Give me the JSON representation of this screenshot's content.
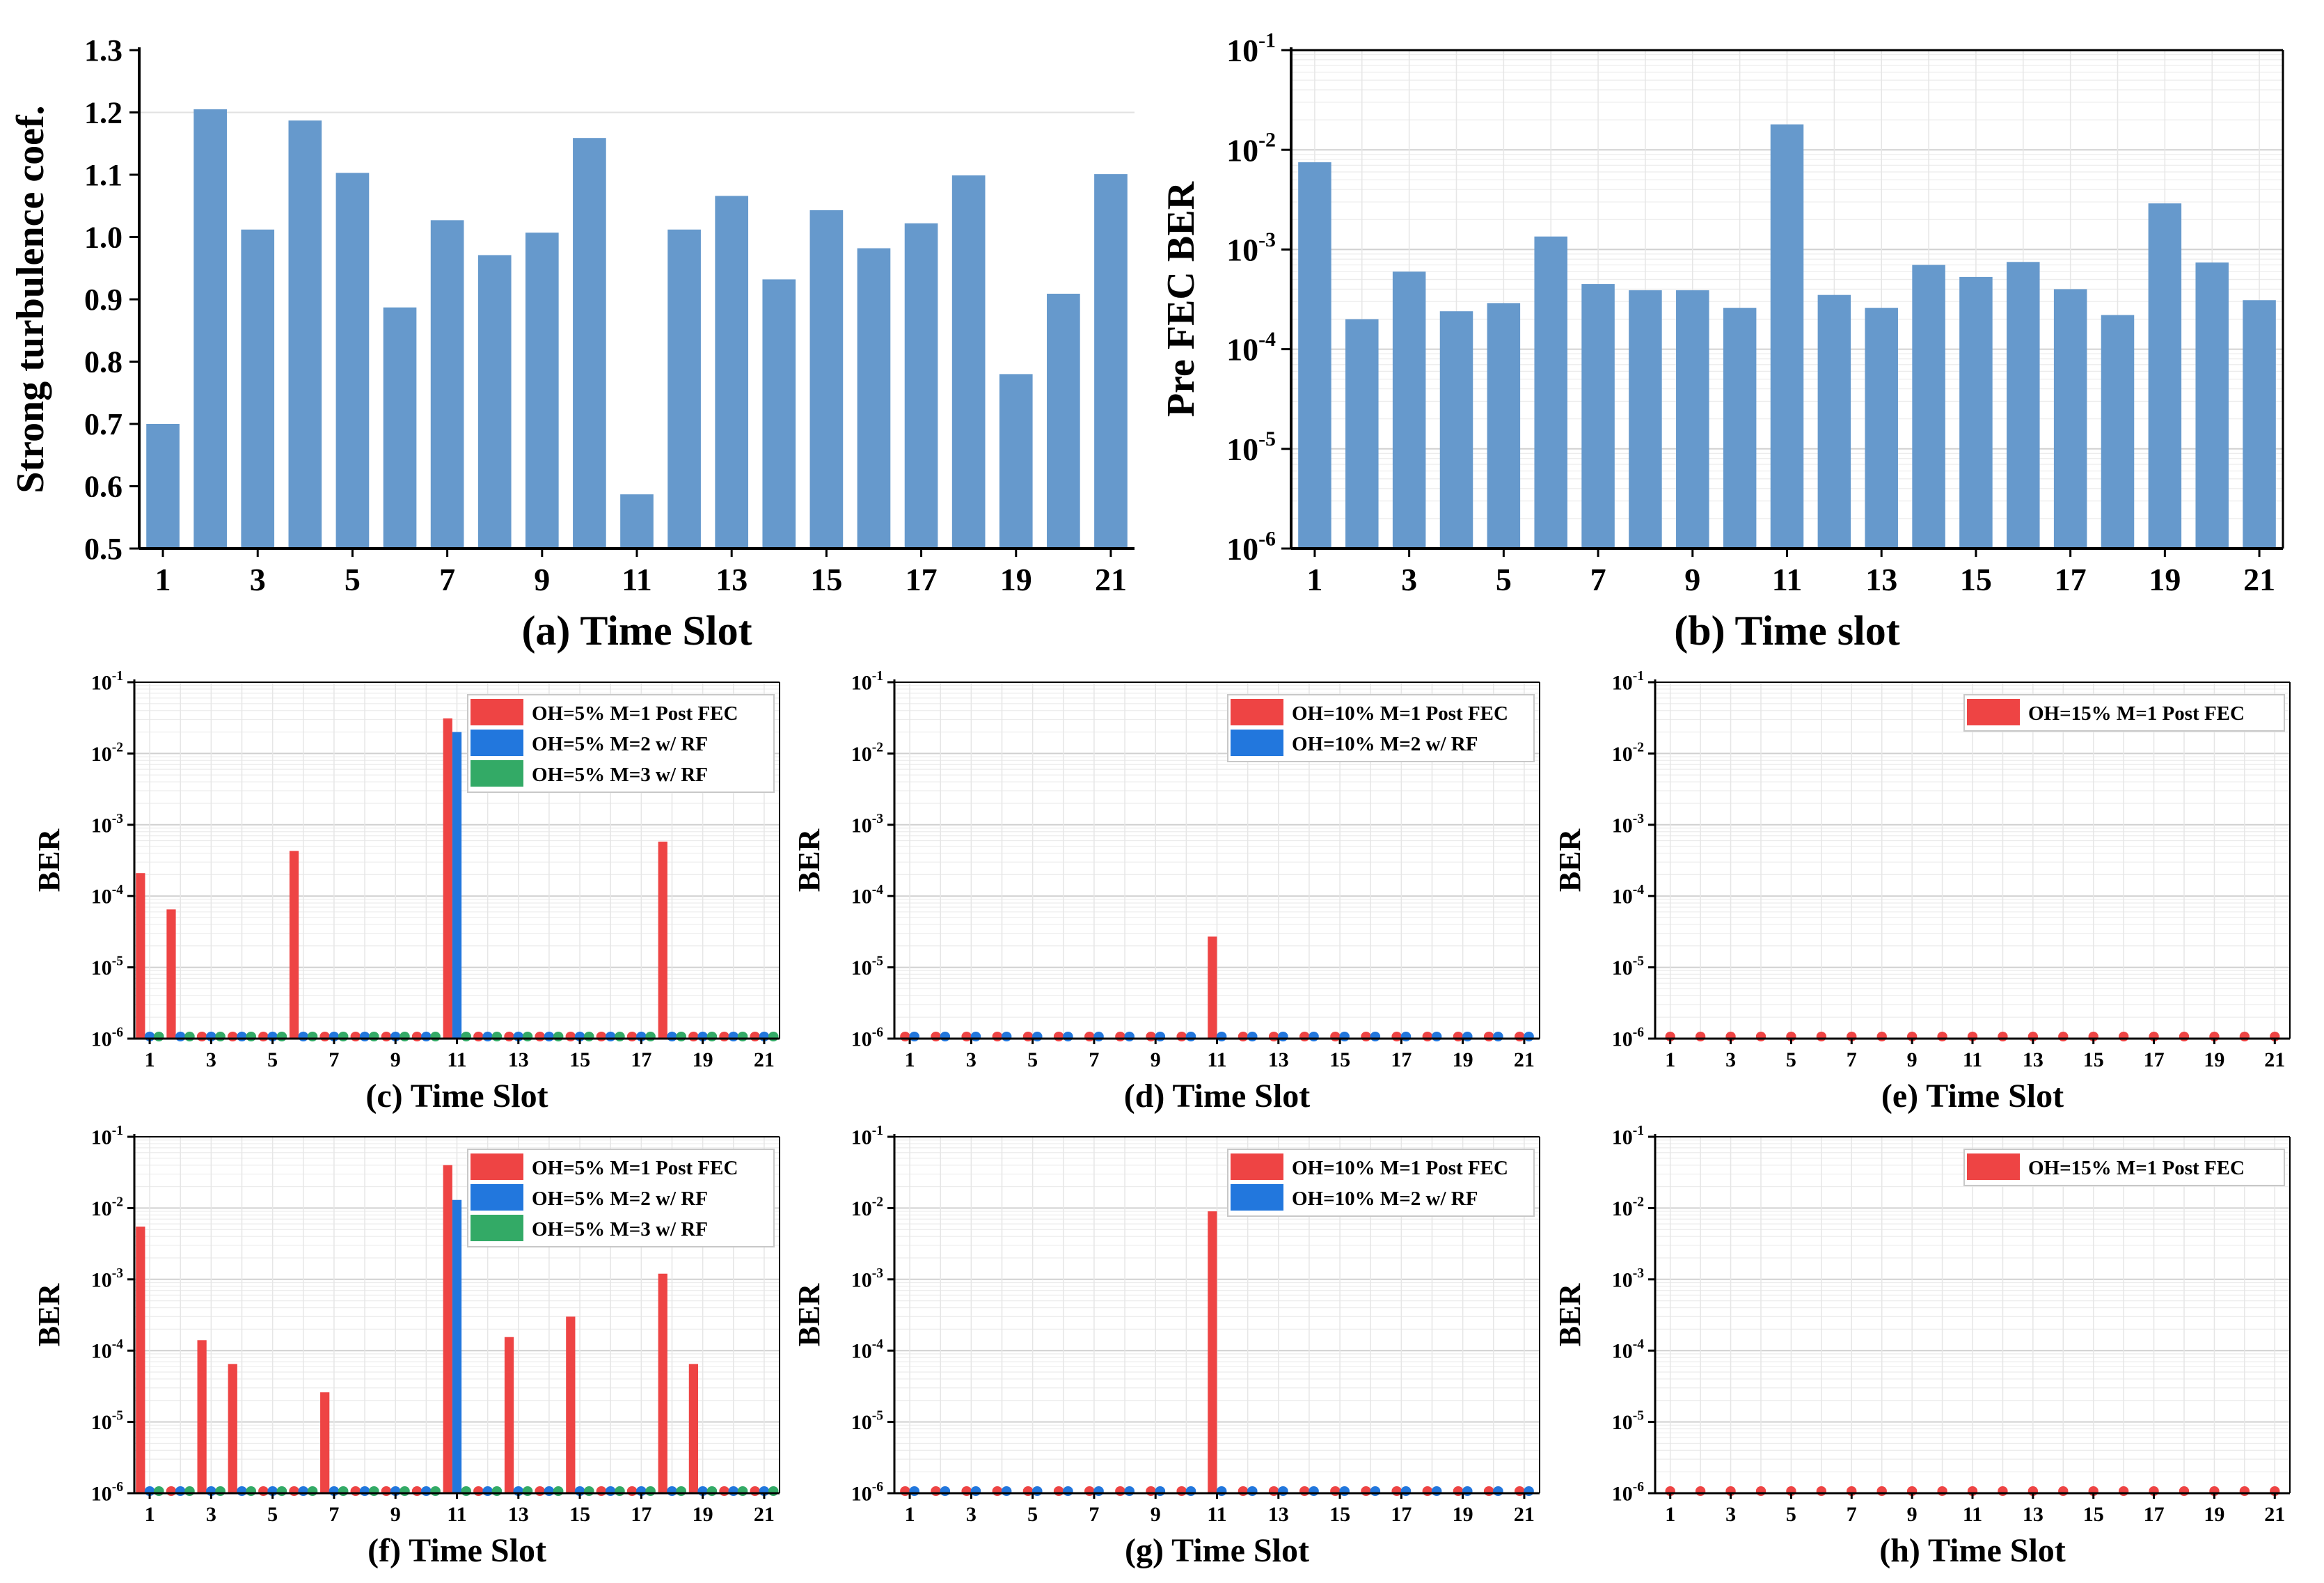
{
  "chart_data": [
    {
      "id": "a",
      "type": "bar",
      "scale": "linear",
      "title": "",
      "caption": "(a) Time Slot",
      "xlabel": "Time Slot",
      "ylabel": "Strong turbulence coef.",
      "ylim": [
        0.5,
        1.3
      ],
      "yticks": [
        "0.5",
        "0.6",
        "0.7",
        "0.8",
        "0.9",
        "1.0",
        "1.1",
        "1.2",
        "1.3"
      ],
      "xticks": [
        "1",
        "3",
        "5",
        "7",
        "9",
        "11",
        "13",
        "15",
        "17",
        "19",
        "21"
      ],
      "categories": [
        1,
        2,
        3,
        4,
        5,
        6,
        7,
        8,
        9,
        10,
        11,
        12,
        13,
        14,
        15,
        16,
        17,
        18,
        19,
        20,
        21
      ],
      "series": [
        {
          "name": "Strong turbulence coef.",
          "color": "#6699cc",
          "values": [
            0.7,
            1.205,
            1.012,
            1.187,
            1.103,
            0.887,
            1.027,
            0.971,
            1.007,
            1.159,
            0.587,
            1.012,
            1.066,
            0.932,
            1.043,
            0.982,
            1.022,
            1.099,
            0.78,
            0.909,
            1.101
          ]
        }
      ]
    },
    {
      "id": "b",
      "type": "bar",
      "scale": "log",
      "title": "",
      "caption": "(b) Time slot",
      "xlabel": "Time slot",
      "ylabel": "Pre FEC BER",
      "ylim": [
        1e-06,
        0.1
      ],
      "yticks_exp": [
        "-6",
        "-5",
        "-4",
        "-3",
        "-2",
        "-1"
      ],
      "xticks": [
        "1",
        "3",
        "5",
        "7",
        "9",
        "11",
        "13",
        "15",
        "17",
        "19",
        "21"
      ],
      "categories": [
        1,
        2,
        3,
        4,
        5,
        6,
        7,
        8,
        9,
        10,
        11,
        12,
        13,
        14,
        15,
        16,
        17,
        18,
        19,
        20,
        21
      ],
      "series": [
        {
          "name": "Pre FEC BER",
          "color": "#6699cc",
          "values": [
            0.0075,
            0.0002,
            0.0006,
            0.00024,
            0.00029,
            0.00135,
            0.00045,
            0.00039,
            0.00039,
            0.00026,
            0.018,
            0.00035,
            0.00026,
            0.0007,
            0.00053,
            0.00075,
            0.0004,
            0.00022,
            0.0029,
            0.00074,
            0.00031
          ]
        }
      ]
    },
    {
      "id": "c",
      "type": "bar",
      "scale": "log",
      "caption": "(c) Time Slot",
      "xlabel": "Time Slot",
      "ylabel": "BER",
      "ylim": [
        1e-06,
        0.1
      ],
      "yticks_exp": [
        "-6",
        "-5",
        "-4",
        "-3",
        "-2",
        "-1"
      ],
      "xticks": [
        "1",
        "3",
        "5",
        "7",
        "9",
        "11",
        "13",
        "15",
        "17",
        "19",
        "21"
      ],
      "categories": [
        1,
        2,
        3,
        4,
        5,
        6,
        7,
        8,
        9,
        10,
        11,
        12,
        13,
        14,
        15,
        16,
        17,
        18,
        19,
        20,
        21
      ],
      "legend_position": "top-right",
      "series": [
        {
          "name": "OH=5% M=1 Post FEC",
          "color": "#ee4444",
          "values": [
            0.00021,
            6.5e-05,
            0,
            0,
            0,
            0.00043,
            0,
            0,
            0,
            0,
            0.031,
            0,
            0,
            0,
            0,
            0,
            0,
            0.00058,
            0,
            0,
            0
          ]
        },
        {
          "name": "OH=5% M=2 w/ RF",
          "color": "#2277dd",
          "values": [
            0,
            0,
            0,
            0,
            0,
            0,
            0,
            0,
            0,
            0,
            0.02,
            0,
            0,
            0,
            0,
            0,
            0,
            0,
            0,
            0,
            0
          ]
        },
        {
          "name": "OH=5% M=3 w/ RF",
          "color": "#33aa66",
          "values": [
            0,
            0,
            0,
            0,
            0,
            0,
            0,
            0,
            0,
            0,
            0,
            0,
            0,
            0,
            0,
            0,
            0,
            0,
            0,
            0,
            0
          ]
        }
      ]
    },
    {
      "id": "d",
      "type": "bar",
      "scale": "log",
      "caption": "(d) Time Slot",
      "xlabel": "Time Slot",
      "ylabel": "BER",
      "ylim": [
        1e-06,
        0.1
      ],
      "yticks_exp": [
        "-6",
        "-5",
        "-4",
        "-3",
        "-2",
        "-1"
      ],
      "xticks": [
        "1",
        "3",
        "5",
        "7",
        "9",
        "11",
        "13",
        "15",
        "17",
        "19",
        "21"
      ],
      "categories": [
        1,
        2,
        3,
        4,
        5,
        6,
        7,
        8,
        9,
        10,
        11,
        12,
        13,
        14,
        15,
        16,
        17,
        18,
        19,
        20,
        21
      ],
      "legend_position": "top-right",
      "series": [
        {
          "name": "OH=10% M=1 Post FEC",
          "color": "#ee4444",
          "values": [
            0,
            0,
            0,
            0,
            0,
            0,
            0,
            0,
            0,
            0,
            2.7e-05,
            0,
            0,
            0,
            0,
            0,
            0,
            0,
            0,
            0,
            0
          ]
        },
        {
          "name": "OH=10% M=2 w/ RF",
          "color": "#2277dd",
          "values": [
            0,
            0,
            0,
            0,
            0,
            0,
            0,
            0,
            0,
            0,
            0,
            0,
            0,
            0,
            0,
            0,
            0,
            0,
            0,
            0,
            0
          ]
        }
      ]
    },
    {
      "id": "e",
      "type": "bar",
      "scale": "log",
      "caption": "(e) Time Slot",
      "xlabel": "Time Slot",
      "ylabel": "BER",
      "ylim": [
        1e-06,
        0.1
      ],
      "yticks_exp": [
        "-6",
        "-5",
        "-4",
        "-3",
        "-2",
        "-1"
      ],
      "xticks": [
        "1",
        "3",
        "5",
        "7",
        "9",
        "11",
        "13",
        "15",
        "17",
        "19",
        "21"
      ],
      "categories": [
        1,
        2,
        3,
        4,
        5,
        6,
        7,
        8,
        9,
        10,
        11,
        12,
        13,
        14,
        15,
        16,
        17,
        18,
        19,
        20,
        21
      ],
      "legend_position": "top-right",
      "series": [
        {
          "name": "OH=15% M=1 Post FEC",
          "color": "#ee4444",
          "values": [
            0,
            0,
            0,
            0,
            0,
            0,
            0,
            0,
            0,
            0,
            0,
            0,
            0,
            0,
            0,
            0,
            0,
            0,
            0,
            0,
            0
          ]
        }
      ]
    },
    {
      "id": "f",
      "type": "bar",
      "scale": "log",
      "caption": "(f) Time Slot",
      "xlabel": "Time Slot",
      "ylabel": "BER",
      "ylim": [
        1e-06,
        0.1
      ],
      "yticks_exp": [
        "-6",
        "-5",
        "-4",
        "-3",
        "-2",
        "-1"
      ],
      "xticks": [
        "1",
        "3",
        "5",
        "7",
        "9",
        "11",
        "13",
        "15",
        "17",
        "19",
        "21"
      ],
      "categories": [
        1,
        2,
        3,
        4,
        5,
        6,
        7,
        8,
        9,
        10,
        11,
        12,
        13,
        14,
        15,
        16,
        17,
        18,
        19,
        20,
        21
      ],
      "legend_position": "top-right",
      "series": [
        {
          "name": "OH=5% M=1 Post FEC",
          "color": "#ee4444",
          "values": [
            0.0055,
            0,
            0.00014,
            6.5e-05,
            0,
            0,
            2.6e-05,
            0,
            0,
            0,
            0.04,
            0,
            0.000155,
            0,
            0.0003,
            0,
            0,
            0.0012,
            6.5e-05,
            0,
            0
          ]
        },
        {
          "name": "OH=5% M=2 w/ RF",
          "color": "#2277dd",
          "values": [
            0,
            0,
            0,
            0,
            0,
            0,
            0,
            0,
            0,
            0,
            0.013,
            0,
            0,
            0,
            0,
            0,
            0,
            0,
            0,
            0,
            0
          ]
        },
        {
          "name": "OH=5% M=3 w/ RF",
          "color": "#33aa66",
          "values": [
            0,
            0,
            0,
            0,
            0,
            0,
            0,
            0,
            0,
            0,
            0,
            0,
            0,
            0,
            0,
            0,
            0,
            0,
            0,
            0,
            0
          ]
        }
      ]
    },
    {
      "id": "g",
      "type": "bar",
      "scale": "log",
      "caption": "(g) Time Slot",
      "xlabel": "Time Slot",
      "ylabel": "BER",
      "ylim": [
        1e-06,
        0.1
      ],
      "yticks_exp": [
        "-6",
        "-5",
        "-4",
        "-3",
        "-2",
        "-1"
      ],
      "xticks": [
        "1",
        "3",
        "5",
        "7",
        "9",
        "11",
        "13",
        "15",
        "17",
        "19",
        "21"
      ],
      "categories": [
        1,
        2,
        3,
        4,
        5,
        6,
        7,
        8,
        9,
        10,
        11,
        12,
        13,
        14,
        15,
        16,
        17,
        18,
        19,
        20,
        21
      ],
      "legend_position": "top-right",
      "series": [
        {
          "name": "OH=10% M=1 Post FEC",
          "color": "#ee4444",
          "values": [
            0,
            0,
            0,
            0,
            0,
            0,
            0,
            0,
            0,
            0,
            0.009,
            0,
            0,
            0,
            0,
            0,
            0,
            0,
            0,
            0,
            0
          ]
        },
        {
          "name": "OH=10% M=2 w/ RF",
          "color": "#2277dd",
          "values": [
            0,
            0,
            0,
            0,
            0,
            0,
            0,
            0,
            0,
            0,
            0,
            0,
            0,
            0,
            0,
            0,
            0,
            0,
            0,
            0,
            0
          ]
        }
      ]
    },
    {
      "id": "h",
      "type": "bar",
      "scale": "log",
      "caption": "(h) Time Slot",
      "xlabel": "Time Slot",
      "ylabel": "BER",
      "ylim": [
        1e-06,
        0.1
      ],
      "yticks_exp": [
        "-6",
        "-5",
        "-4",
        "-3",
        "-2",
        "-1"
      ],
      "xticks": [
        "1",
        "3",
        "5",
        "7",
        "9",
        "11",
        "13",
        "15",
        "17",
        "19",
        "21"
      ],
      "categories": [
        1,
        2,
        3,
        4,
        5,
        6,
        7,
        8,
        9,
        10,
        11,
        12,
        13,
        14,
        15,
        16,
        17,
        18,
        19,
        20,
        21
      ],
      "legend_position": "top-right",
      "series": [
        {
          "name": "OH=15% M=1 Post FEC",
          "color": "#ee4444",
          "values": [
            0,
            0,
            0,
            0,
            0,
            0,
            0,
            0,
            0,
            0,
            0,
            0,
            0,
            0,
            0,
            0,
            0,
            0,
            0,
            0,
            0
          ]
        }
      ]
    }
  ]
}
